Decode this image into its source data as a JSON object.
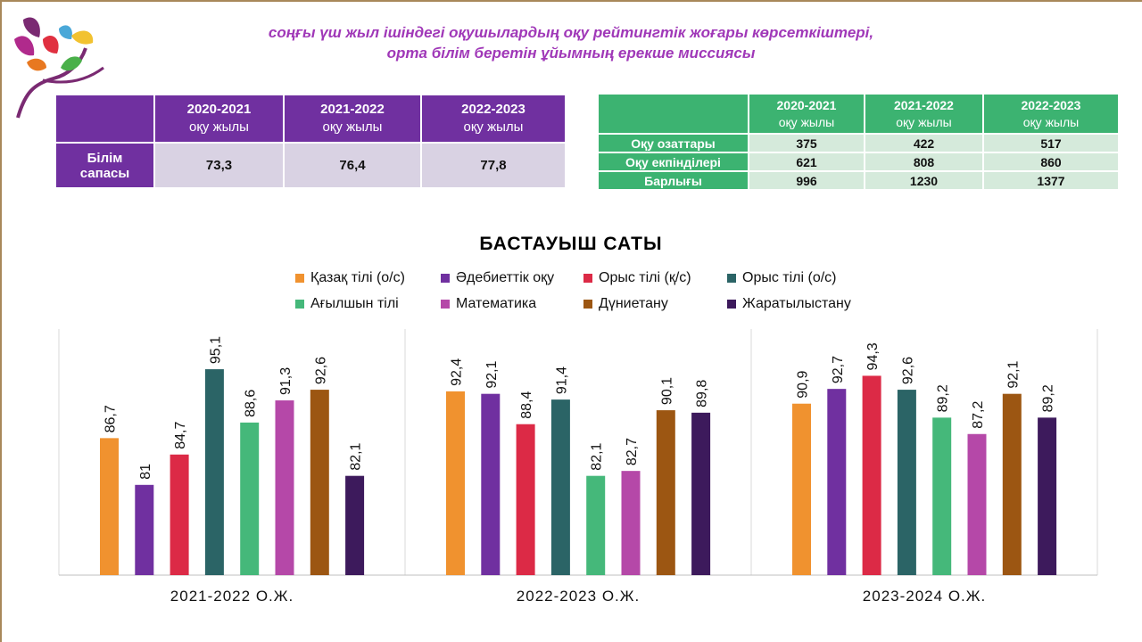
{
  "header": {
    "title_line1": "соңғы үш жыл ішіндегі оқушылардың оқу рейтингтік жоғары көрсеткіштері,",
    "title_line2": "орта білім беретін ұйымның ерекше миссиясы"
  },
  "quality_table": {
    "columns": [
      {
        "year": "2020-2021",
        "label": "оқу жылы"
      },
      {
        "year": "2021-2022",
        "label": "оқу жылы"
      },
      {
        "year": "2022-2023",
        "label": "оқу жылы"
      }
    ],
    "row_label_1": "Білім",
    "row_label_2": "сапасы",
    "values": [
      "73,3",
      "76,4",
      "77,8"
    ]
  },
  "students_table": {
    "columns": [
      {
        "year": "2020-2021",
        "label": "оқу жылы"
      },
      {
        "year": "2021-2022",
        "label": "оқу жылы"
      },
      {
        "year": "2022-2023",
        "label": "оқу жылы"
      }
    ],
    "rows": [
      {
        "label": "Оқу озаттары",
        "values": [
          "375",
          "422",
          "517"
        ]
      },
      {
        "label": "Оқу екпінділері",
        "values": [
          "621",
          "808",
          "860"
        ]
      },
      {
        "label": "Барлығы",
        "values": [
          "996",
          "1230",
          "1377"
        ]
      }
    ]
  },
  "chart_data": {
    "type": "bar",
    "title": "БАСТАУЫШ САТЫ",
    "categories": [
      "2021-2022 О.Ж.",
      "2022-2023 О.Ж.",
      "2023-2024 О.Ж."
    ],
    "ylim": [
      70,
      100
    ],
    "grid": false,
    "legend_position": "top",
    "series": [
      {
        "name": "Қазақ тілі (о/с)",
        "color": "#f0922f",
        "values": [
          86.7,
          92.4,
          90.9
        ],
        "labels": [
          "86,7",
          "92,4",
          "90,9"
        ]
      },
      {
        "name": "Әдебиеттік оқу",
        "color": "#7030a0",
        "values": [
          81,
          92.1,
          92.7
        ],
        "labels": [
          "81",
          "92,1",
          "92,7"
        ]
      },
      {
        "name": "Орыс тілі (қ/с)",
        "color": "#dc2a46",
        "values": [
          84.7,
          88.4,
          94.3
        ],
        "labels": [
          "84,7",
          "88,4",
          "94,3"
        ]
      },
      {
        "name": "Орыс тілі (о/с)",
        "color": "#2b6466",
        "values": [
          95.1,
          91.4,
          92.6
        ],
        "labels": [
          "95,1",
          "91,4",
          "92,6"
        ]
      },
      {
        "name": "Ағылшын тілі",
        "color": "#45b87a",
        "values": [
          88.6,
          82.1,
          89.2
        ],
        "labels": [
          "88,6",
          "82,1",
          "89,2"
        ]
      },
      {
        "name": "Математика",
        "color": "#b548a8",
        "values": [
          91.3,
          82.7,
          87.2
        ],
        "labels": [
          "91,3",
          "82,7",
          "87,2"
        ]
      },
      {
        "name": "Дүниетану",
        "color": "#9c5612",
        "values": [
          92.6,
          90.1,
          92.1
        ],
        "labels": [
          "92,6",
          "90,1",
          "92,1"
        ]
      },
      {
        "name": "Жаратылыстану",
        "color": "#3d1a5c",
        "values": [
          82.1,
          89.8,
          89.2
        ],
        "labels": [
          "82,1",
          "89,8",
          "89,2"
        ]
      }
    ]
  }
}
